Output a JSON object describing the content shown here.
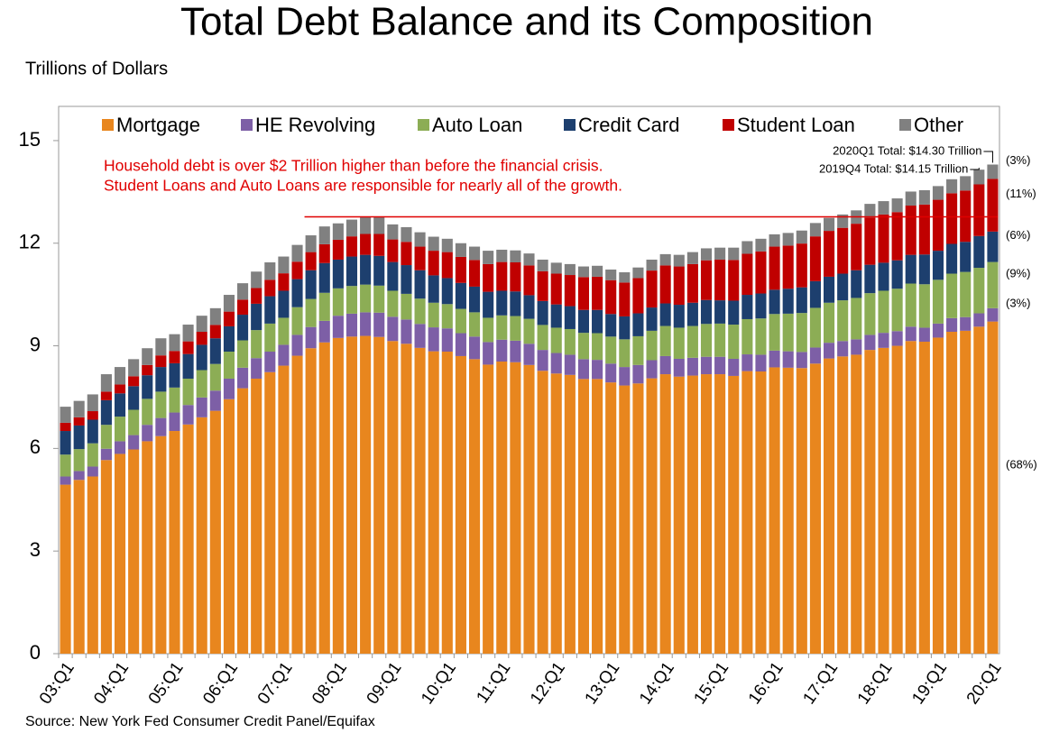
{
  "chart_data": {
    "type": "stacked_bar",
    "title": "Total Debt Balance and its Composition",
    "ylabel": "Trillions of Dollars",
    "source": "Source: New York Fed Consumer Credit Panel/Equifax",
    "annotation_lines": [
      "Household debt is over $2 Trillion higher than before the financial crisis.",
      "Student Loans and Auto Loans are responsible for nearly all of the growth."
    ],
    "total_labels": [
      "2020Q1 Total: $14.30 Trillion",
      "2019Q4 Total: $14.15 Trillion"
    ],
    "categories": [
      "03:Q1",
      null,
      null,
      null,
      "04:Q1",
      null,
      null,
      null,
      "05:Q1",
      null,
      null,
      null,
      "06:Q1",
      null,
      null,
      null,
      "07:Q1",
      null,
      null,
      null,
      "08:Q1",
      null,
      null,
      null,
      "09:Q1",
      null,
      null,
      null,
      "10:Q1",
      null,
      null,
      null,
      "11:Q1",
      null,
      null,
      null,
      "12:Q1",
      null,
      null,
      null,
      "13:Q1",
      null,
      null,
      null,
      "14:Q1",
      null,
      null,
      null,
      "15:Q1",
      null,
      null,
      null,
      "16:Q1",
      null,
      null,
      null,
      "17:Q1",
      null,
      null,
      null,
      "18:Q1",
      null,
      null,
      null,
      "19:Q1",
      null,
      null,
      null,
      "20:Q1"
    ],
    "series": [
      {
        "name": "Mortgage",
        "color": "#e8861e",
        "share_label": "(68%)",
        "values": [
          4.94,
          5.08,
          5.18,
          5.66,
          5.84,
          5.97,
          6.21,
          6.36,
          6.51,
          6.7,
          6.91,
          7.1,
          7.44,
          7.76,
          8.04,
          8.23,
          8.42,
          8.71,
          8.93,
          9.1,
          9.23,
          9.27,
          9.29,
          9.26,
          9.14,
          9.06,
          8.94,
          8.84,
          8.83,
          8.7,
          8.61,
          8.45,
          8.54,
          8.52,
          8.44,
          8.27,
          8.19,
          8.15,
          8.03,
          8.03,
          7.93,
          7.84,
          7.9,
          8.05,
          8.17,
          8.1,
          8.13,
          8.17,
          8.17,
          8.12,
          8.26,
          8.25,
          8.37,
          8.36,
          8.35,
          8.48,
          8.63,
          8.69,
          8.74,
          8.88,
          8.94,
          9.0,
          9.14,
          9.12,
          9.24,
          9.41,
          9.44,
          9.56,
          9.71
        ]
      },
      {
        "name": "HE Revolving",
        "color": "#7d5fa6",
        "share_label": "(3%)",
        "values": [
          0.24,
          0.26,
          0.29,
          0.33,
          0.37,
          0.42,
          0.48,
          0.53,
          0.54,
          0.57,
          0.58,
          0.59,
          0.6,
          0.6,
          0.6,
          0.6,
          0.61,
          0.61,
          0.62,
          0.63,
          0.65,
          0.67,
          0.69,
          0.71,
          0.71,
          0.71,
          0.7,
          0.7,
          0.68,
          0.67,
          0.66,
          0.66,
          0.64,
          0.63,
          0.62,
          0.61,
          0.6,
          0.59,
          0.58,
          0.56,
          0.55,
          0.54,
          0.54,
          0.53,
          0.53,
          0.52,
          0.52,
          0.51,
          0.51,
          0.5,
          0.49,
          0.49,
          0.49,
          0.48,
          0.47,
          0.47,
          0.46,
          0.45,
          0.45,
          0.44,
          0.44,
          0.43,
          0.42,
          0.41,
          0.41,
          0.4,
          0.4,
          0.39,
          0.39
        ]
      },
      {
        "name": "Auto Loan",
        "color": "#8cad55",
        "share_label": "(9%)",
        "values": [
          0.64,
          0.64,
          0.68,
          0.7,
          0.72,
          0.74,
          0.76,
          0.77,
          0.73,
          0.77,
          0.8,
          0.78,
          0.79,
          0.8,
          0.82,
          0.82,
          0.79,
          0.81,
          0.82,
          0.82,
          0.8,
          0.81,
          0.81,
          0.79,
          0.76,
          0.75,
          0.74,
          0.72,
          0.71,
          0.71,
          0.71,
          0.71,
          0.71,
          0.72,
          0.73,
          0.73,
          0.74,
          0.75,
          0.77,
          0.78,
          0.79,
          0.81,
          0.84,
          0.86,
          0.88,
          0.91,
          0.93,
          0.96,
          0.97,
          1.0,
          1.03,
          1.06,
          1.07,
          1.1,
          1.14,
          1.16,
          1.17,
          1.19,
          1.21,
          1.22,
          1.23,
          1.24,
          1.26,
          1.27,
          1.28,
          1.3,
          1.32,
          1.33,
          1.35
        ]
      },
      {
        "name": "Credit Card",
        "color": "#1d3f6e",
        "share_label": "(6%)",
        "values": [
          0.69,
          0.69,
          0.69,
          0.72,
          0.68,
          0.69,
          0.69,
          0.72,
          0.71,
          0.72,
          0.74,
          0.75,
          0.74,
          0.75,
          0.77,
          0.8,
          0.79,
          0.82,
          0.84,
          0.87,
          0.84,
          0.86,
          0.87,
          0.87,
          0.84,
          0.84,
          0.83,
          0.8,
          0.76,
          0.76,
          0.75,
          0.76,
          0.72,
          0.72,
          0.69,
          0.7,
          0.68,
          0.67,
          0.67,
          0.68,
          0.66,
          0.67,
          0.67,
          0.68,
          0.66,
          0.67,
          0.68,
          0.7,
          0.68,
          0.7,
          0.71,
          0.73,
          0.71,
          0.73,
          0.75,
          0.78,
          0.76,
          0.78,
          0.81,
          0.83,
          0.82,
          0.83,
          0.84,
          0.87,
          0.85,
          0.87,
          0.88,
          0.93,
          0.89
        ]
      },
      {
        "name": "Student Loan",
        "color": "#c00000",
        "share_label": "(11%)",
        "values": [
          0.24,
          0.24,
          0.25,
          0.25,
          0.26,
          0.29,
          0.3,
          0.34,
          0.36,
          0.37,
          0.38,
          0.39,
          0.43,
          0.44,
          0.46,
          0.48,
          0.51,
          0.51,
          0.53,
          0.55,
          0.58,
          0.59,
          0.61,
          0.64,
          0.66,
          0.68,
          0.69,
          0.72,
          0.76,
          0.76,
          0.78,
          0.81,
          0.84,
          0.85,
          0.87,
          0.87,
          0.9,
          0.91,
          0.96,
          0.97,
          0.99,
          0.99,
          1.03,
          1.08,
          1.11,
          1.12,
          1.13,
          1.16,
          1.19,
          1.19,
          1.2,
          1.23,
          1.26,
          1.26,
          1.28,
          1.31,
          1.34,
          1.34,
          1.36,
          1.38,
          1.41,
          1.41,
          1.44,
          1.46,
          1.49,
          1.48,
          1.5,
          1.51,
          1.54
        ]
      },
      {
        "name": "Other",
        "color": "#808080",
        "share_label": "(3%)",
        "values": [
          0.47,
          0.48,
          0.49,
          0.51,
          0.51,
          0.5,
          0.49,
          0.5,
          0.49,
          0.49,
          0.47,
          0.49,
          0.49,
          0.48,
          0.48,
          0.51,
          0.49,
          0.49,
          0.49,
          0.52,
          0.48,
          0.49,
          0.5,
          0.49,
          0.44,
          0.43,
          0.42,
          0.41,
          0.39,
          0.4,
          0.39,
          0.39,
          0.36,
          0.35,
          0.35,
          0.34,
          0.32,
          0.32,
          0.31,
          0.32,
          0.31,
          0.3,
          0.31,
          0.32,
          0.33,
          0.34,
          0.35,
          0.35,
          0.35,
          0.36,
          0.37,
          0.37,
          0.36,
          0.37,
          0.38,
          0.39,
          0.38,
          0.39,
          0.39,
          0.4,
          0.39,
          0.4,
          0.41,
          0.42,
          0.4,
          0.41,
          0.42,
          0.43,
          0.42
        ]
      }
    ],
    "ylim": [
      0,
      16
    ],
    "yticks": [
      0,
      3,
      6,
      9,
      12,
      15
    ],
    "legend": "top"
  }
}
